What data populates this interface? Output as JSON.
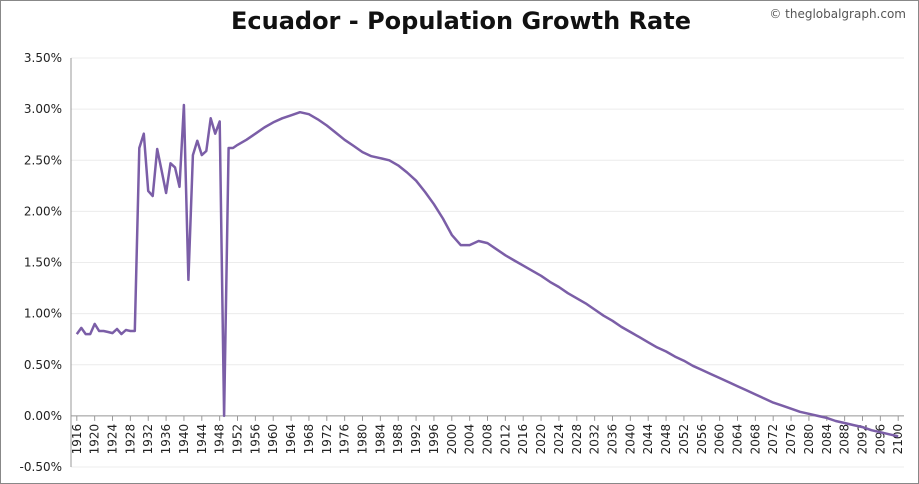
{
  "chart_data": {
    "type": "line",
    "title": "Ecuador - Population Growth Rate",
    "watermark": "© theglobalgraph.com",
    "x": [
      1916,
      1917,
      1918,
      1919,
      1920,
      1921,
      1922,
      1923,
      1924,
      1925,
      1926,
      1927,
      1928,
      1929,
      1930,
      1931,
      1932,
      1933,
      1934,
      1935,
      1936,
      1937,
      1938,
      1939,
      1940,
      1941,
      1942,
      1943,
      1944,
      1945,
      1946,
      1947,
      1948,
      1949,
      1950,
      1951,
      1952,
      1954,
      1956,
      1958,
      1960,
      1962,
      1964,
      1966,
      1968,
      1970,
      1972,
      1974,
      1976,
      1978,
      1980,
      1982,
      1984,
      1986,
      1988,
      1990,
      1992,
      1994,
      1996,
      1998,
      2000,
      2002,
      2004,
      2006,
      2008,
      2010,
      2012,
      2014,
      2016,
      2018,
      2020,
      2022,
      2024,
      2026,
      2028,
      2030,
      2032,
      2034,
      2036,
      2038,
      2040,
      2042,
      2044,
      2046,
      2048,
      2050,
      2052,
      2054,
      2056,
      2058,
      2060,
      2062,
      2064,
      2066,
      2068,
      2070,
      2072,
      2074,
      2076,
      2078,
      2080,
      2082,
      2084,
      2086,
      2088,
      2090,
      2092,
      2094,
      2096,
      2098,
      2100
    ],
    "series": [
      {
        "color": "#7b5ea7",
        "values": [
          0.8,
          0.86,
          0.8,
          0.8,
          0.9,
          0.83,
          0.83,
          0.82,
          0.81,
          0.85,
          0.8,
          0.84,
          0.83,
          0.83,
          2.62,
          2.76,
          2.2,
          2.15,
          2.61,
          2.4,
          2.18,
          2.47,
          2.43,
          2.24,
          3.04,
          1.33,
          2.55,
          2.69,
          2.55,
          2.59,
          2.91,
          2.76,
          2.88,
          0.0,
          2.62,
          2.62,
          2.65,
          2.7,
          2.76,
          2.82,
          2.87,
          2.91,
          2.94,
          2.97,
          2.95,
          2.9,
          2.84,
          2.77,
          2.7,
          2.64,
          2.58,
          2.54,
          2.52,
          2.5,
          2.45,
          2.38,
          2.3,
          2.19,
          2.07,
          1.93,
          1.77,
          1.67,
          1.67,
          1.71,
          1.69,
          1.63,
          1.57,
          1.52,
          1.47,
          1.42,
          1.37,
          1.31,
          1.26,
          1.2,
          1.15,
          1.1,
          1.04,
          0.98,
          0.93,
          0.87,
          0.82,
          0.77,
          0.72,
          0.67,
          0.63,
          0.58,
          0.54,
          0.49,
          0.45,
          0.41,
          0.37,
          0.33,
          0.29,
          0.25,
          0.21,
          0.17,
          0.13,
          0.1,
          0.07,
          0.04,
          0.02,
          0.0,
          -0.02,
          -0.05,
          -0.07,
          -0.09,
          -0.11,
          -0.14,
          -0.16,
          -0.18,
          -0.2
        ]
      }
    ],
    "xlim": [
      1914.7,
      2101.3
    ],
    "xticks": [
      1916,
      1920,
      1924,
      1928,
      1932,
      1936,
      1940,
      1944,
      1948,
      1952,
      1956,
      1960,
      1964,
      1968,
      1972,
      1976,
      1980,
      1984,
      1988,
      1992,
      1996,
      2000,
      2004,
      2008,
      2012,
      2016,
      2020,
      2024,
      2028,
      2032,
      2036,
      2040,
      2044,
      2048,
      2052,
      2056,
      2060,
      2064,
      2068,
      2072,
      2076,
      2080,
      2084,
      2088,
      2092,
      2096,
      2100
    ],
    "ylim": [
      -0.5,
      3.5
    ],
    "yticks": [
      {
        "value": -0.5,
        "label": "-0.50%"
      },
      {
        "value": 0,
        "label": "0.00%"
      },
      {
        "value": 0.5,
        "label": "0.50%"
      },
      {
        "value": 1,
        "label": "1.00%"
      },
      {
        "value": 1.5,
        "label": "1.50%"
      },
      {
        "value": 2,
        "label": "2.00%"
      },
      {
        "value": 2.5,
        "label": "2.50%"
      },
      {
        "value": 3,
        "label": "3.00%"
      },
      {
        "value": 3.5,
        "label": "3.50%"
      }
    ],
    "grid": true
  }
}
